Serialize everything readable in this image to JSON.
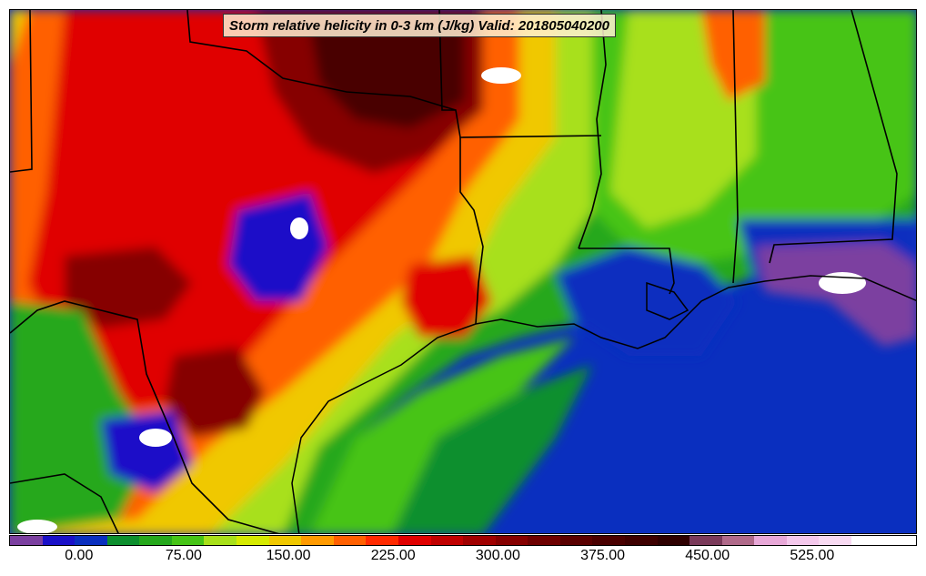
{
  "title": "Storm relative helicity in 0-3 km (J/kg) Valid: 201805040200",
  "colorbar": {
    "colors": [
      "#7b3fa0",
      "#1a10c8",
      "#0a2fbf",
      "#0d8f2e",
      "#25a81c",
      "#46c416",
      "#a8e01a",
      "#d6ea00",
      "#f0c800",
      "#ff9a00",
      "#ff6000",
      "#ff2a00",
      "#e00000",
      "#c00000",
      "#a00000",
      "#860000",
      "#6e0000",
      "#5a0000",
      "#4a0000",
      "#3e0000",
      "#2e0000",
      "#7a3a5a",
      "#b06a8a",
      "#e8a8d8",
      "#f4c8ec",
      "#f8daf2",
      "#ffffff",
      "#ffffff"
    ],
    "ticks": [
      "0.00",
      "75.00",
      "150.00",
      "225.00",
      "300.00",
      "375.00",
      "450.00",
      "525.00"
    ]
  },
  "legend_values": [
    0,
    75,
    150,
    225,
    300,
    375,
    450,
    525
  ],
  "legend_range": [
    -50,
    600
  ],
  "map": {
    "ocean_color": "#0a2fbf",
    "region": "Texas, Oklahoma, Arkansas, Louisiana, Mississippi, Alabama and Gulf of Mexico"
  }
}
